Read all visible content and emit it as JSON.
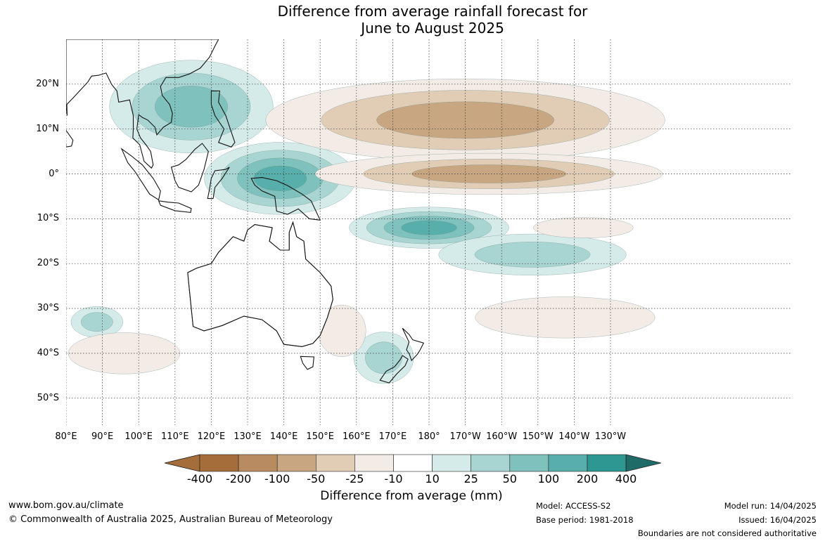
{
  "title": {
    "line1": "Difference from average rainfall forecast for",
    "line2": "June to August 2025"
  },
  "map": {
    "projection": "equirectangular",
    "lon_range": [
      80,
      280
    ],
    "lat_range": [
      -56,
      30
    ],
    "grid": true,
    "lat_labels": [
      "20°N",
      "10°N",
      "0°",
      "10°S",
      "20°S",
      "30°S",
      "40°S",
      "50°S"
    ],
    "lat_values": [
      20,
      10,
      0,
      -10,
      -20,
      -30,
      -40,
      -50
    ],
    "lon_labels": [
      "80°E",
      "90°E",
      "100°E",
      "110°E",
      "120°E",
      "130°E",
      "140°E",
      "150°E",
      "160°E",
      "170°E",
      "180°",
      "170°W",
      "160°W",
      "150°W",
      "140°W",
      "130°W"
    ],
    "lon_values": [
      80,
      90,
      100,
      110,
      120,
      130,
      140,
      150,
      160,
      170,
      180,
      190,
      200,
      210,
      220,
      230
    ],
    "anomaly_regions": [
      {
        "category": 3,
        "lon": [
          94,
          135
        ],
        "lat": [
          6,
          24
        ]
      },
      {
        "category": 4,
        "lon": [
          120,
          158
        ],
        "lat": [
          -8,
          6
        ]
      },
      {
        "category": 4,
        "lon": [
          160,
          200
        ],
        "lat": [
          -16,
          -8
        ]
      },
      {
        "category": 2,
        "lon": [
          185,
          232
        ],
        "lat": [
          -22,
          -14
        ]
      },
      {
        "category": 2,
        "lon": [
          160,
          175
        ],
        "lat": [
          -46,
          -36
        ]
      },
      {
        "category": 2,
        "lon": [
          82,
          95
        ],
        "lat": [
          -36,
          -30
        ]
      },
      {
        "category": -3,
        "lon": [
          140,
          240
        ],
        "lat": [
          4,
          20
        ]
      },
      {
        "category": -3,
        "lon": [
          153,
          240
        ],
        "lat": [
          -4,
          4
        ]
      },
      {
        "category": -1,
        "lon": [
          195,
          240
        ],
        "lat": [
          -36,
          -28
        ]
      },
      {
        "category": -1,
        "lon": [
          150,
          162
        ],
        "lat": [
          -40,
          -30
        ]
      },
      {
        "category": -1,
        "lon": [
          82,
          110
        ],
        "lat": [
          -44,
          -36
        ]
      },
      {
        "category": -1,
        "lon": [
          210,
          235
        ],
        "lat": [
          -14,
          -10
        ]
      }
    ]
  },
  "colorbar": {
    "ticks": [
      "-400",
      "-200",
      "-100",
      "-50",
      "-25",
      "-10",
      "10",
      "25",
      "50",
      "100",
      "200",
      "400"
    ],
    "colors": [
      "#a46d3a",
      "#b98b60",
      "#c9a682",
      "#e1ccb5",
      "#f3ebe5",
      "#ffffff",
      "#d5ebe9",
      "#a8d5d1",
      "#7fc1bc",
      "#58aeaa",
      "#2f9792",
      "#1f6b67"
    ],
    "label": "Difference from average (mm)"
  },
  "footer": {
    "website": "www.bom.gov.au/climate",
    "copyright": "© Commonwealth of Australia 2025, Australian Bureau of Meteorology",
    "model": "Model: ACCESS-S2",
    "base_period": "Base period: 1981-2018",
    "model_run": "Model run: 14/04/2025",
    "issued": "Issued: 16/04/2025",
    "disclaimer": "Boundaries are not considered authoritative"
  }
}
